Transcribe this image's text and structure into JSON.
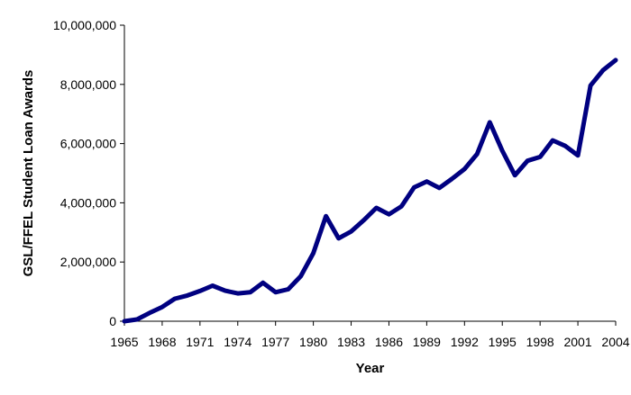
{
  "chart_data": {
    "type": "line",
    "title": "",
    "xlabel": "Year",
    "ylabel": "GSL/FFEL Student Loan Awards",
    "xlim": [
      1965,
      2004
    ],
    "ylim": [
      0,
      10000000
    ],
    "x_ticks": [
      "1965",
      "1968",
      "1971",
      "1974",
      "1977",
      "1980",
      "1983",
      "1986",
      "1989",
      "1992",
      "1995",
      "1998",
      "2001",
      "2004"
    ],
    "y_ticks": [
      "0",
      "2,000,000",
      "4,000,000",
      "6,000,000",
      "8,000,000",
      "10,000,000"
    ],
    "grid": false,
    "legend": "none",
    "series": [
      {
        "color": "#000080",
        "x": [
          1965,
          1966,
          1967,
          1968,
          1969,
          1970,
          1971,
          1972,
          1973,
          1974,
          1975,
          1976,
          1977,
          1978,
          1979,
          1980,
          1981,
          1982,
          1983,
          1984,
          1985,
          1986,
          1987,
          1988,
          1989,
          1990,
          1991,
          1992,
          1993,
          1994,
          1995,
          1996,
          1997,
          1998,
          1999,
          2000,
          2001,
          2002,
          2003,
          2004
        ],
        "values": [
          0,
          60000,
          280000,
          480000,
          760000,
          870000,
          1020000,
          1200000,
          1030000,
          940000,
          980000,
          1300000,
          980000,
          1080000,
          1520000,
          2300000,
          3550000,
          2800000,
          3030000,
          3410000,
          3830000,
          3610000,
          3880000,
          4520000,
          4720000,
          4500000,
          4810000,
          5140000,
          5650000,
          6720000,
          5760000,
          4930000,
          5420000,
          5550000,
          6110000,
          5920000,
          5600000,
          7960000,
          8480000,
          8820000
        ]
      }
    ]
  }
}
